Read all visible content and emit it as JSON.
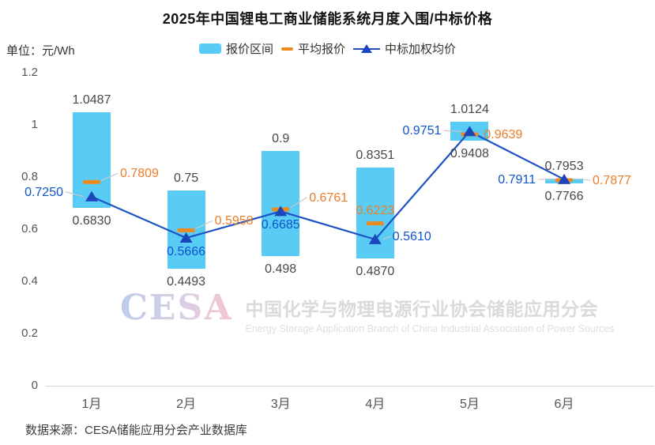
{
  "chart": {
    "title": "2025年中国锂电工商业储能系统月度入围/中标价格",
    "unit_label": "单位：元/Wh",
    "source": "数据来源：CESA储能应用分会产业数据库",
    "watermark": {
      "logo": "CESA",
      "cn": "中国化学与物理电源行业协会储能应用分会",
      "en": "Energy Storage Application Branch of China Industrial Association of Power Sources"
    }
  },
  "chart_data": {
    "type": "bar",
    "subtype": "range-bar-with-average-dash-and-weighted-line",
    "title": "2025年中国锂电工商业储能系统月度入围/中标价格",
    "unit": "元/Wh",
    "xlabel": "",
    "ylabel": "元/Wh",
    "ylim": [
      0,
      1.2
    ],
    "grid": false,
    "legend_position": "top",
    "categories": [
      "1月",
      "2月",
      "3月",
      "4月",
      "5月",
      "6月"
    ],
    "y_ticks": [
      "1.2",
      "1",
      "0.8",
      "0.6",
      "0.4",
      "0.2",
      "0"
    ],
    "legend": [
      {
        "label": "报价区间",
        "marker": "bar"
      },
      {
        "label": "平均报价",
        "marker": "dash"
      },
      {
        "label": "中标加权均价",
        "marker": "line-triangle"
      }
    ],
    "series": [
      {
        "name": "报价区间",
        "kind": "range",
        "high": [
          "1.0487",
          "0.75",
          "0.9",
          "0.8351",
          "1.0124",
          "0.7953"
        ],
        "low": [
          "0.6830",
          "0.4493",
          "0.498",
          "0.4870",
          "0.9408",
          "0.7766"
        ]
      },
      {
        "name": "平均报价",
        "kind": "dash-marker",
        "values": [
          "0.7809",
          "0.5958",
          "0.6761",
          "0.6223",
          "0.9639",
          "0.7877"
        ]
      },
      {
        "name": "中标加权均价",
        "kind": "line",
        "values": [
          "0.7250",
          "0.5666",
          "0.6685",
          "0.5610",
          "0.9751",
          "0.7911"
        ]
      }
    ],
    "colors": {
      "bar": "#58CCF4",
      "avg_marker": "#ED8A1E",
      "avg_label": "#ED7D28",
      "line": "#1E53C6",
      "triangle": "#1C46BC",
      "wavg_label": "#0C55CC",
      "value_label": "#474747",
      "axis": "#D6D6D6",
      "leader": "#C8C8C8"
    }
  }
}
